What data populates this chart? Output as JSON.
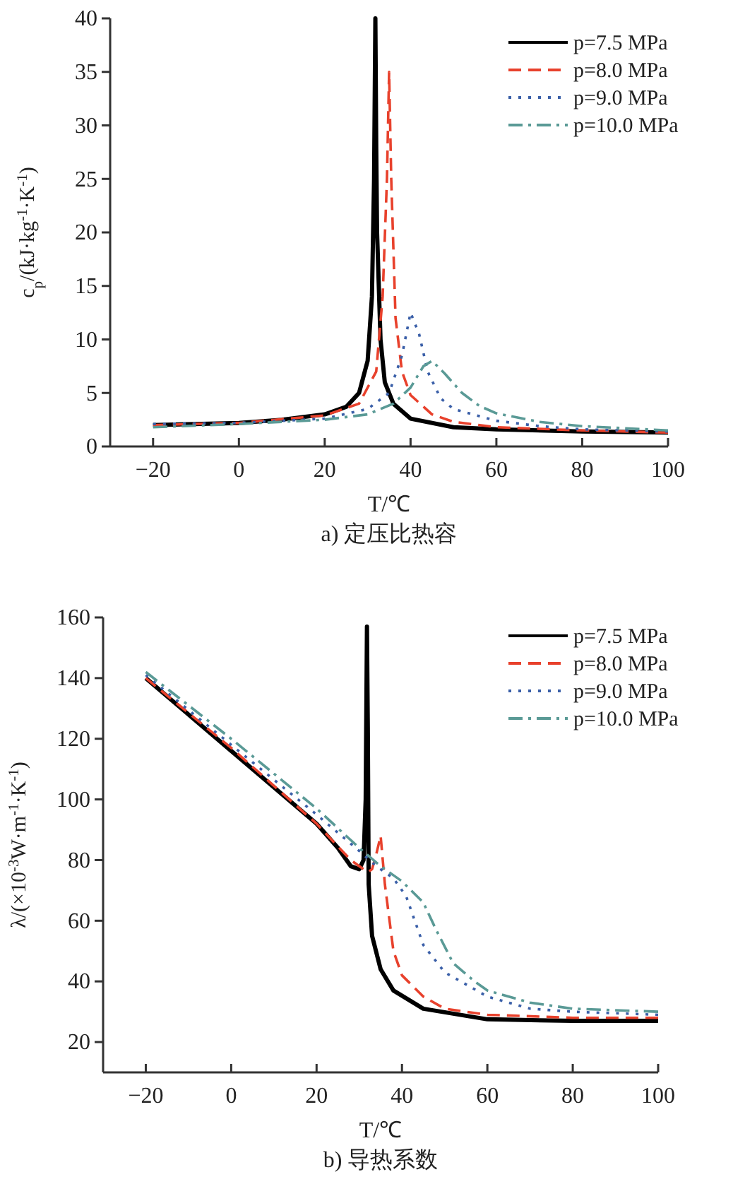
{
  "chart_data": [
    {
      "type": "line",
      "title": "a) 定压比热容",
      "xlabel": "T/℃",
      "ylabel": "c$_{p}$/(kJ·kg$^{-1}$·K$^{-1}$)",
      "xlim": [
        -30,
        100
      ],
      "ylim": [
        0,
        40
      ],
      "xticks": [
        -20,
        0,
        20,
        40,
        60,
        80,
        100
      ],
      "yticks": [
        0,
        5,
        10,
        15,
        20,
        25,
        30,
        35,
        40
      ],
      "legend": "top right",
      "grid": false,
      "series": [
        {
          "name": "p=7.5 MPa",
          "color": "#000000",
          "line_style": "solid",
          "x": [
            -20,
            0,
            10,
            20,
            25,
            28,
            30,
            31,
            31.5,
            31.8,
            32,
            32.2,
            33,
            34,
            36,
            40,
            50,
            60,
            80,
            100
          ],
          "values": [
            2.0,
            2.2,
            2.5,
            3.0,
            3.7,
            5,
            8,
            14,
            25,
            40,
            28,
            20,
            10,
            6,
            4,
            2.6,
            1.8,
            1.6,
            1.4,
            1.3
          ]
        },
        {
          "name": "p=8.0 MPa",
          "color": "#e8412c",
          "line_style": "dashed",
          "x": [
            -20,
            0,
            20,
            28,
            32,
            33.5,
            34.5,
            35,
            35.5,
            36.5,
            38,
            40,
            45,
            50,
            60,
            80,
            100
          ],
          "values": [
            2.0,
            2.2,
            2.9,
            4,
            7,
            14,
            25,
            35,
            25,
            12,
            7,
            4.8,
            3,
            2.3,
            1.8,
            1.5,
            1.3
          ]
        },
        {
          "name": "p=9.0 MPa",
          "color": "#3a5fa8",
          "line_style": "dotted",
          "x": [
            -20,
            0,
            20,
            30,
            35,
            38,
            40,
            42,
            44,
            47,
            50,
            60,
            70,
            80,
            100
          ],
          "values": [
            2.1,
            2.2,
            2.6,
            3.5,
            5,
            8.5,
            12.5,
            10.5,
            7,
            4.5,
            3.5,
            2.4,
            1.9,
            1.6,
            1.4
          ]
        },
        {
          "name": "p=10.0 MPa",
          "color": "#5a9a96",
          "line_style": "dashdot",
          "x": [
            -20,
            0,
            20,
            30,
            36,
            40,
            43,
            45,
            48,
            52,
            56,
            60,
            70,
            80,
            100
          ],
          "values": [
            1.8,
            2.1,
            2.5,
            3,
            4,
            5.5,
            7.5,
            8,
            6.8,
            5,
            3.8,
            3.1,
            2.3,
            1.9,
            1.5
          ]
        }
      ]
    },
    {
      "type": "line",
      "title": "b) 导热系数",
      "xlabel": "T/℃",
      "ylabel": "λ/(×10$^{-3}$W·m$^{-1}$·K$^{-1}$)",
      "xlim": [
        -30,
        100
      ],
      "ylim": [
        10,
        160
      ],
      "xticks": [
        -20,
        0,
        20,
        40,
        60,
        80,
        100
      ],
      "yticks": [
        20,
        40,
        60,
        80,
        100,
        120,
        140,
        160
      ],
      "legend": "top right",
      "grid": false,
      "series": [
        {
          "name": "p=7.5 MPa",
          "color": "#000000",
          "line_style": "solid",
          "x": [
            -20,
            0,
            20,
            25,
            28,
            30,
            31,
            31.5,
            31.8,
            32,
            32.2,
            33,
            35,
            38,
            45,
            60,
            80,
            100
          ],
          "values": [
            140,
            116,
            92,
            84,
            78,
            77,
            80,
            100,
            157,
            123,
            72,
            55,
            44,
            37,
            31,
            27.5,
            27,
            27
          ]
        },
        {
          "name": "p=8.0 MPa",
          "color": "#e8412c",
          "line_style": "dashed",
          "x": [
            -20,
            0,
            20,
            28,
            32,
            33,
            34,
            35,
            35.5,
            36,
            38,
            40,
            45,
            50,
            60,
            80,
            100
          ],
          "values": [
            140,
            117,
            92,
            80,
            76,
            77,
            82,
            88,
            80,
            72,
            50,
            42,
            35,
            31,
            29,
            28,
            28
          ]
        },
        {
          "name": "p=9.0 MPa",
          "color": "#3a5fa8",
          "line_style": "dotted",
          "x": [
            -20,
            0,
            20,
            30,
            34,
            38,
            41,
            43,
            45,
            50,
            60,
            70,
            80,
            100
          ],
          "values": [
            141,
            118,
            95,
            83,
            78,
            74,
            68,
            60,
            52,
            43,
            35,
            31,
            30,
            29
          ]
        },
        {
          "name": "p=10.0 MPa",
          "color": "#5a9a96",
          "line_style": "dashdot",
          "x": [
            -20,
            0,
            20,
            30,
            35,
            40,
            45,
            48,
            52,
            57,
            60,
            70,
            80,
            100
          ],
          "values": [
            142,
            120,
            97,
            84,
            78,
            73,
            66,
            57,
            46,
            40,
            37,
            33,
            31,
            30
          ]
        }
      ]
    }
  ]
}
